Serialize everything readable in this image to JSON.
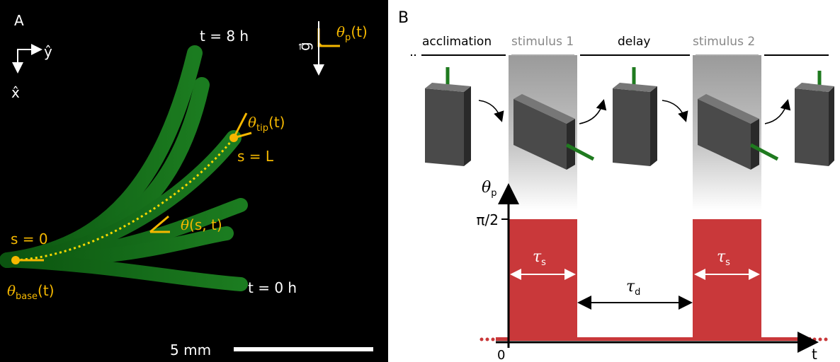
{
  "panel_a": {
    "label": "A",
    "axis_y": "ŷ",
    "axis_x": "x̂",
    "time_end": "t = 8 h",
    "time_start": "t = 0 h",
    "gravity": "g⃗",
    "theta_p": {
      "symbol": "θ",
      "sub": "p",
      "arg": "(t)"
    },
    "theta_tip": {
      "symbol": "θ",
      "sub": "tip",
      "arg": "(t)"
    },
    "s_end": "s = L",
    "theta_s": {
      "symbol": "θ",
      "arg": "(s, t)"
    },
    "s_start": "s = 0",
    "theta_base": {
      "symbol": "θ",
      "sub": "base",
      "arg": "(t)"
    },
    "scale_bar": "5 mm"
  },
  "panel_b": {
    "label": "B",
    "phases": [
      "acclimation",
      "stimulus 1",
      "delay",
      "stimulus 2"
    ],
    "y_axis": {
      "symbol": "θ",
      "sub": "p"
    },
    "y_level": "π/2",
    "tau_s": {
      "symbol": "τ",
      "sub": "s"
    },
    "tau_d": {
      "symbol": "τ",
      "sub": "d"
    },
    "origin": "0",
    "x_axis": "t"
  }
}
